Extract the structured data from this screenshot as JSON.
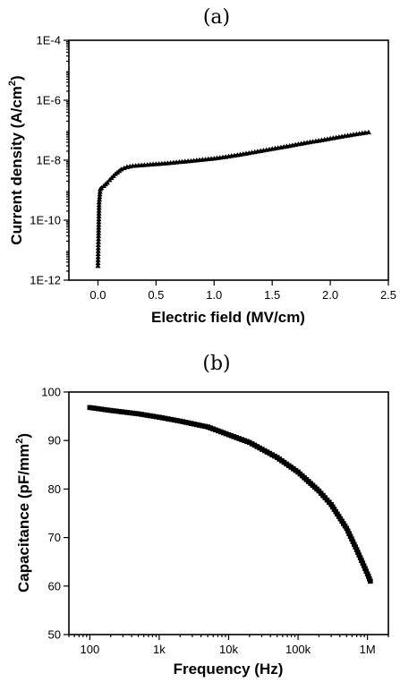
{
  "chart_data": [
    {
      "panel_label": "(a)",
      "type": "line",
      "xlabel": "Electric field (MV/cm)",
      "ylabel": "Current density (A/cm",
      "ylabel_sup": "2",
      "ylabel_close": ")",
      "xlim": [
        -0.25,
        2.5
      ],
      "ylim": [
        1e-12,
        0.0001
      ],
      "y_scale": "log",
      "grid": false,
      "legend": "none",
      "marker": "triangle",
      "x_ticks": [
        0.0,
        0.5,
        1.0,
        1.5,
        2.0,
        2.5
      ],
      "x_tick_labels": [
        "0.0",
        "0.5",
        "1.0",
        "1.5",
        "2.0",
        "2.5"
      ],
      "y_ticks": [
        1e-12,
        1e-10,
        1e-08,
        1e-06,
        0.0001
      ],
      "y_tick_labels": [
        "1E-12",
        "1E-10",
        "1E-8",
        "1E-6",
        "1E-4"
      ],
      "series": [
        {
          "x": [
            0.0,
            0.005,
            0.01,
            0.02,
            0.03,
            0.05,
            0.08,
            0.1,
            0.15,
            0.2,
            0.25,
            0.3,
            0.4,
            0.5,
            0.6,
            0.7,
            0.8,
            0.9,
            1.0,
            1.1,
            1.2,
            1.3,
            1.4,
            1.5,
            1.6,
            1.7,
            1.8,
            1.9,
            2.0,
            2.1,
            2.2,
            2.3,
            2.33
          ],
          "y": [
            3e-12,
            3e-11,
            4e-10,
            1.1e-09,
            1.2e-09,
            1.4e-09,
            1.8e-09,
            2.2e-09,
            3.5e-09,
            5e-09,
            6e-09,
            6.5e-09,
            7e-09,
            7.5e-09,
            8e-09,
            8.8e-09,
            9.5e-09,
            1.05e-08,
            1.15e-08,
            1.3e-08,
            1.5e-08,
            1.75e-08,
            2.05e-08,
            2.4e-08,
            2.8e-08,
            3.3e-08,
            3.9e-08,
            4.5e-08,
            5.3e-08,
            6.2e-08,
            7.2e-08,
            8.3e-08,
            8.6e-08
          ]
        }
      ]
    },
    {
      "panel_label": "(b)",
      "type": "line",
      "xlabel": "Frequency (Hz)",
      "ylabel": "Capacitance (pF/mm",
      "ylabel_sup": "2",
      "ylabel_close": ")",
      "xlim": [
        50,
        2000000
      ],
      "ylim": [
        50,
        100
      ],
      "x_scale": "log",
      "grid": false,
      "legend": "none",
      "marker": "square",
      "x_ticks": [
        100,
        1000,
        10000,
        100000,
        1000000
      ],
      "x_tick_labels": [
        "100",
        "1k",
        "10k",
        "100k",
        "1M"
      ],
      "y_ticks": [
        50,
        60,
        70,
        80,
        90,
        100
      ],
      "y_tick_labels": [
        "50",
        "60",
        "70",
        "80",
        "90",
        "100"
      ],
      "series": [
        {
          "x": [
            100,
            200,
            500,
            1000,
            2000,
            5000,
            10000,
            20000,
            50000,
            100000,
            200000,
            300000,
            500000,
            700000,
            1000000,
            1100000
          ],
          "y": [
            96.8,
            96.2,
            95.5,
            94.8,
            94.0,
            92.8,
            91.2,
            89.6,
            86.5,
            83.5,
            79.6,
            76.8,
            71.9,
            67.5,
            62.5,
            61.0
          ]
        }
      ]
    }
  ]
}
